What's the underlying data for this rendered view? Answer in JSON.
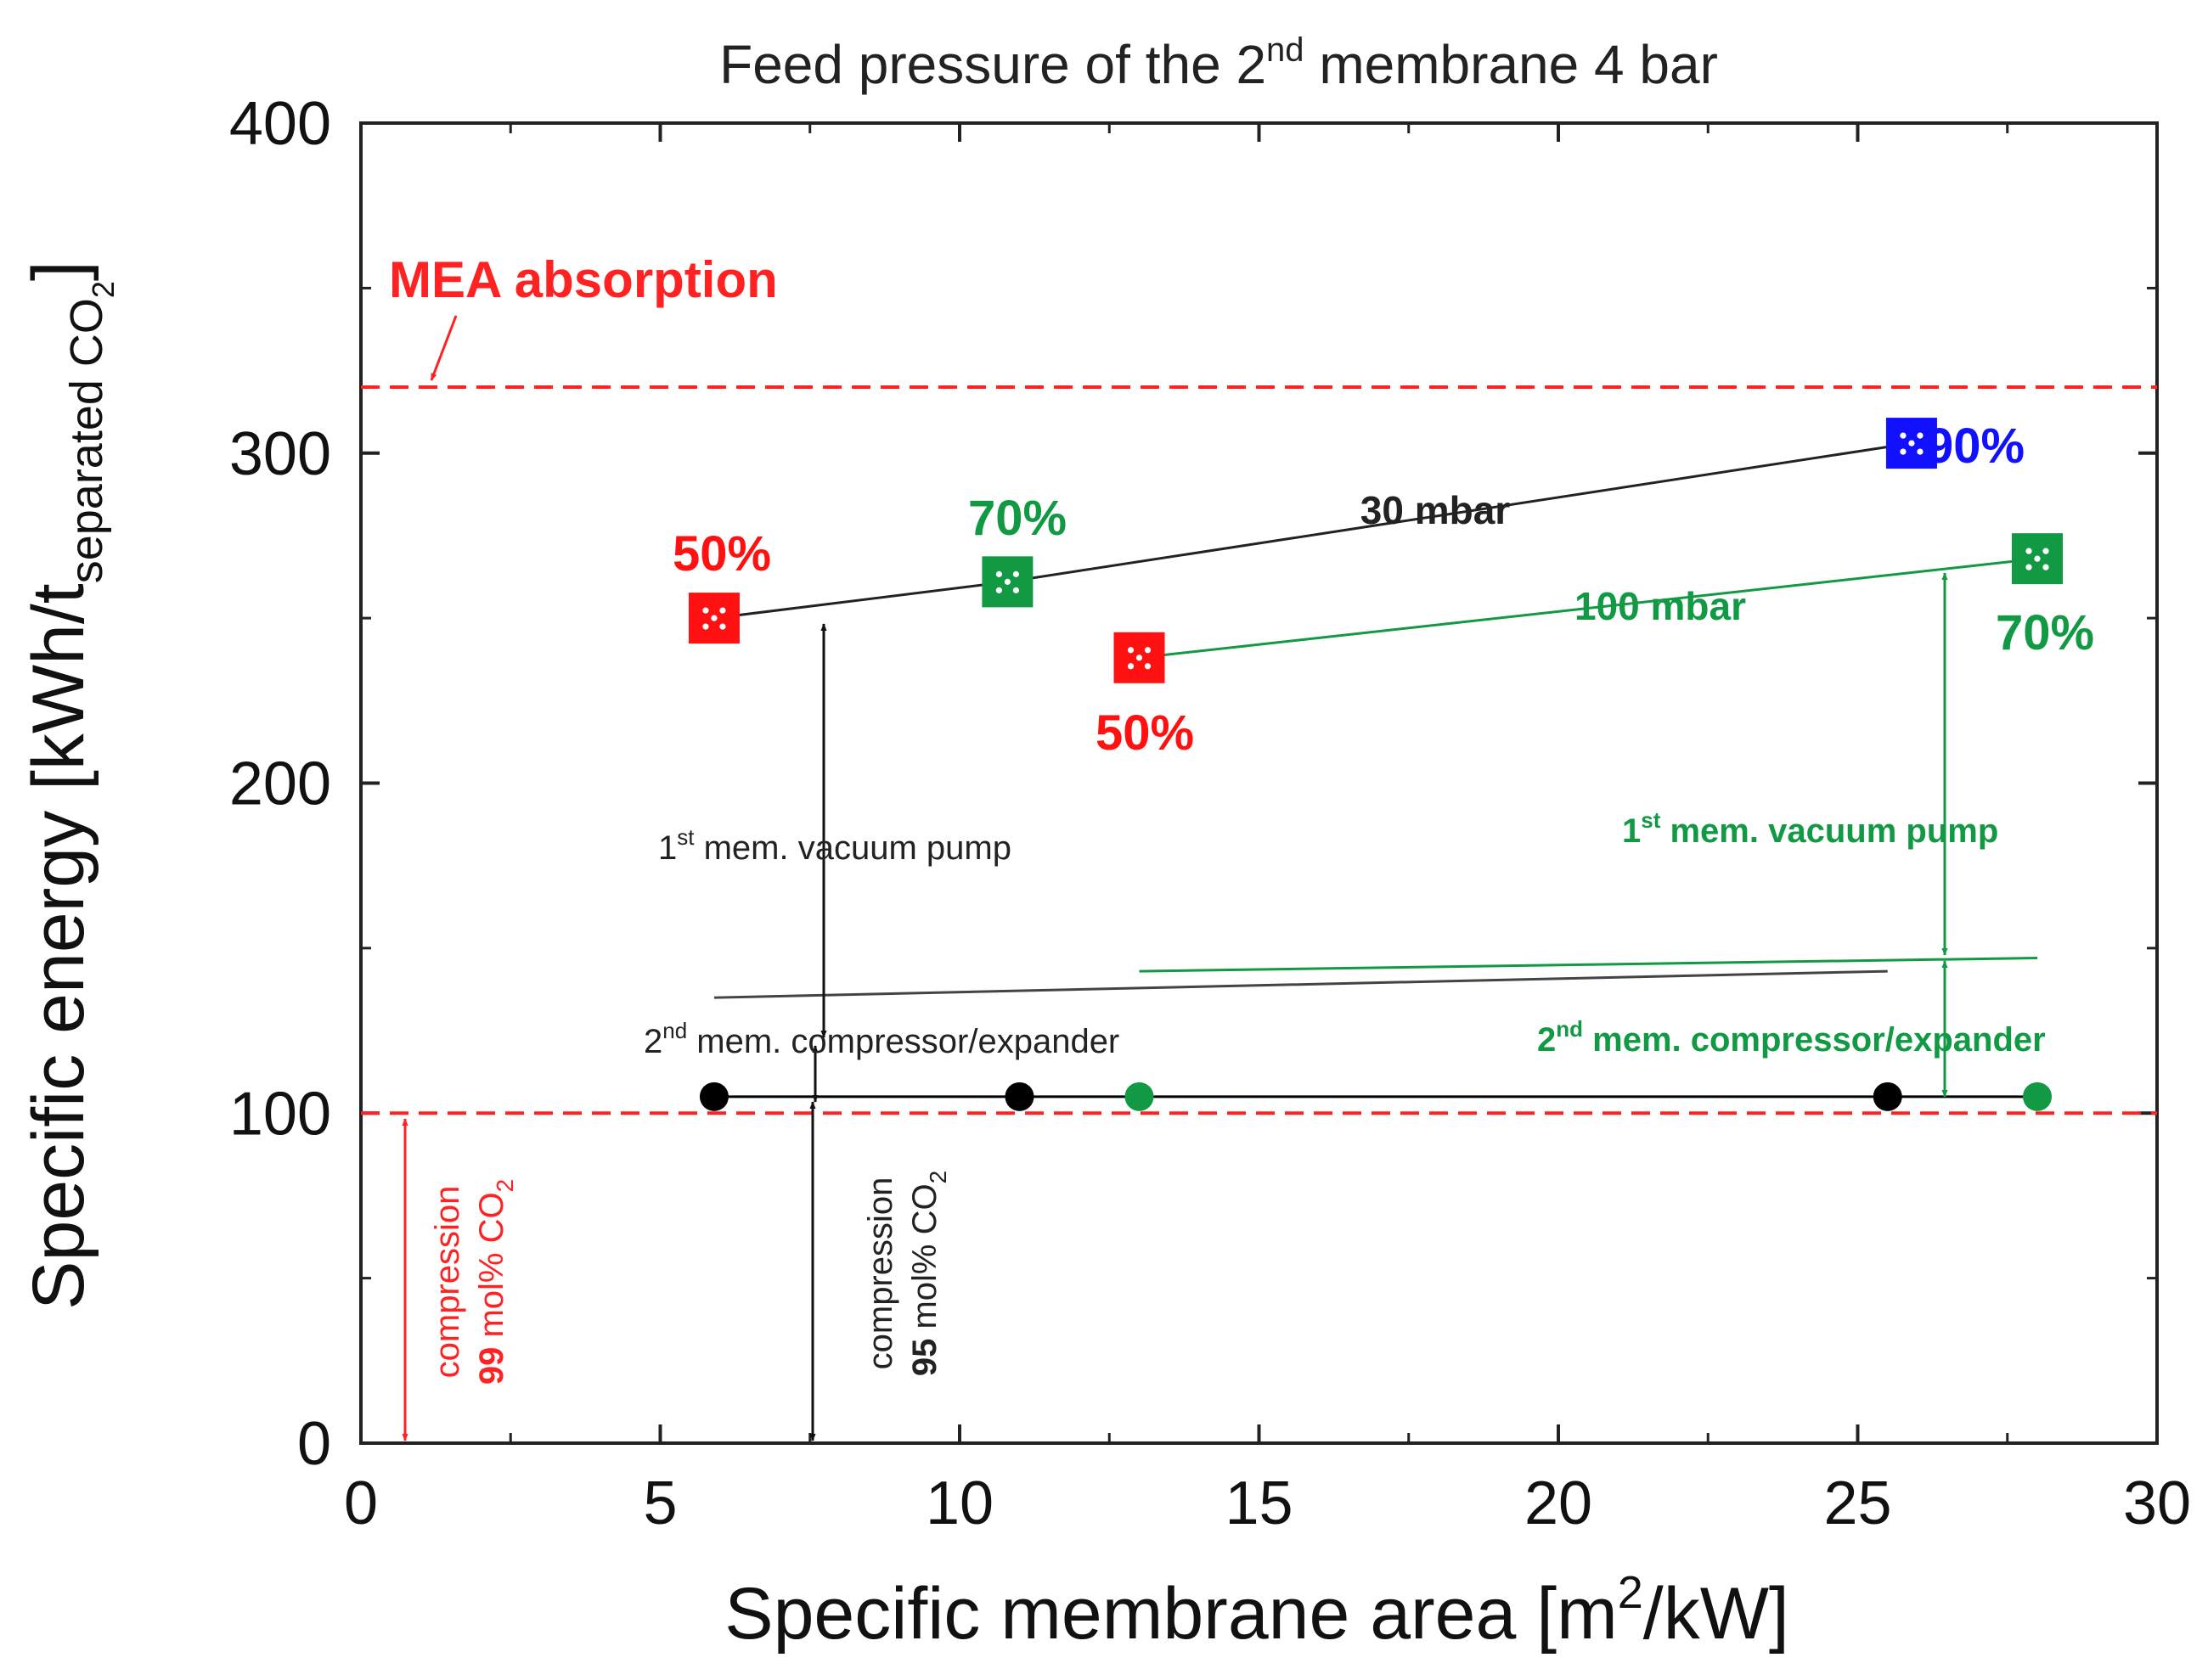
{
  "chart_data": {
    "type": "scatter",
    "title": {
      "pre": "Feed pressure of the 2",
      "sup": "nd",
      "post": " membrane 4 bar"
    },
    "xlabel": {
      "pre": "Specific membrane area [m",
      "sup": "2",
      "post": "/kW]"
    },
    "ylabel": {
      "pre": "Specific energy [kWh/t",
      "sub": "separated CO",
      "subsub": "2",
      "post": "]"
    },
    "xlim": [
      0,
      30
    ],
    "ylim": [
      0,
      400
    ],
    "x_ticks": [
      "0",
      "5",
      "10",
      "15",
      "20",
      "25",
      "30"
    ],
    "y_ticks": [
      "0",
      "100",
      "200",
      "300",
      "400"
    ],
    "reference_lines": [
      {
        "name": "MEA absorption",
        "label": "MEA absorption",
        "y": 320,
        "color": "#ff2222"
      },
      {
        "name": "compression 99 mol% CO2",
        "y": 100,
        "color": "#ff2222"
      }
    ],
    "series": [
      {
        "name": "30 mbar",
        "label": "30 mbar",
        "color": "#222222",
        "points": [
          {
            "x": 5.9,
            "y": 250,
            "label": "50%",
            "marker_color": "#ff1111"
          },
          {
            "x": 10.8,
            "y": 261,
            "label": "70%",
            "marker_color": "#119944"
          },
          {
            "x": 25.9,
            "y": 303,
            "label": "90%",
            "marker_color": "#1111ff"
          }
        ]
      },
      {
        "name": "100 mbar",
        "label": "100 mbar",
        "color": "#119944",
        "points": [
          {
            "x": 13.0,
            "y": 238,
            "label": "50%",
            "marker_color": "#ff1111"
          },
          {
            "x": 28.0,
            "y": 268,
            "label": "70%",
            "marker_color": "#119944"
          }
        ]
      },
      {
        "name": "2nd mem. compressor/expander 30 mbar",
        "color": "#444444",
        "points": [
          {
            "x": 5.9,
            "y": 135
          },
          {
            "x": 25.5,
            "y": 143
          }
        ]
      },
      {
        "name": "2nd mem. compressor/expander 100 mbar",
        "color": "#119944",
        "points": [
          {
            "x": 13.0,
            "y": 143
          },
          {
            "x": 28.0,
            "y": 147
          }
        ]
      },
      {
        "name": "compression baseline",
        "color": "#000000",
        "points": [
          {
            "x": 5.9,
            "y": 105,
            "marker_color": "#000000"
          },
          {
            "x": 11.0,
            "y": 105,
            "marker_color": "#000000"
          },
          {
            "x": 13.0,
            "y": 105,
            "marker_color": "#119944"
          },
          {
            "x": 25.5,
            "y": 105,
            "marker_color": "#000000"
          },
          {
            "x": 28.0,
            "y": 105,
            "marker_color": "#119944"
          }
        ]
      }
    ],
    "annotations": {
      "vac_black": {
        "pre": "1",
        "sup": "st",
        "post": " mem. vacuum pump",
        "color": "#222222"
      },
      "comp_black": {
        "pre": "2",
        "sup": "nd",
        "post": " mem. compressor/expander",
        "color": "#222222"
      },
      "vac_green": {
        "pre": "1",
        "sup": "st",
        "post": " mem. vacuum pump",
        "color": "#119944"
      },
      "comp_green": {
        "pre": "2",
        "sup": "nd",
        "post": " mem. compressor/expander",
        "color": "#119944"
      },
      "compression_99": {
        "line1": "compression",
        "line2_bold": "99",
        "line2_rest": " mol% CO",
        "sub": "2",
        "color": "#ff2222"
      },
      "compression_95": {
        "line1": "compression",
        "line2_bold": "95",
        "line2_rest": " mol% CO",
        "sub": "2",
        "color": "#222222"
      }
    }
  }
}
